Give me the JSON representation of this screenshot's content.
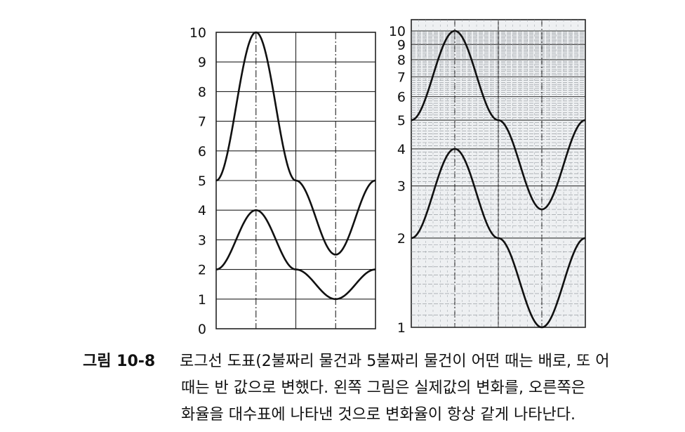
{
  "chart_data": [
    {
      "type": "line",
      "title": "",
      "xlabel": "",
      "ylabel": "",
      "y_scale": "linear",
      "ylim": [
        0,
        10
      ],
      "yticks": [
        "0",
        "1",
        "2",
        "3",
        "4",
        "5",
        "6",
        "7",
        "8",
        "9",
        "10"
      ],
      "grid": true,
      "x": [
        0,
        0.25,
        0.5,
        0.75,
        1.0
      ],
      "series": [
        {
          "values": [
            5,
            10,
            5,
            2.5,
            5
          ]
        },
        {
          "values": [
            2,
            4,
            2,
            1,
            2
          ]
        }
      ]
    },
    {
      "type": "line",
      "title": "",
      "xlabel": "",
      "ylabel": "",
      "y_scale": "log",
      "ylim": [
        1,
        10
      ],
      "yticks": [
        "1",
        "2",
        "3",
        "4",
        "5",
        "6",
        "7",
        "8",
        "9",
        "10"
      ],
      "grid": true,
      "x": [
        0,
        0.25,
        0.5,
        0.75,
        1.0
      ],
      "series": [
        {
          "values": [
            5,
            10,
            5,
            2.5,
            5
          ]
        },
        {
          "values": [
            2,
            4,
            2,
            1,
            2
          ]
        }
      ]
    }
  ],
  "caption": {
    "label": "그림 10-8",
    "line1": "로그선 도표(2불짜리 물건과 5불짜리 물건이 어떤 때는 배로, 또 어",
    "line2": "때는 반 값으로 변했다. 왼쪽 그림은 실제값의 변화를, 오른쪽은",
    "line3": "화율을 대수표에 나타낸 것으로 변화율이 항상 같게 나타난다."
  }
}
